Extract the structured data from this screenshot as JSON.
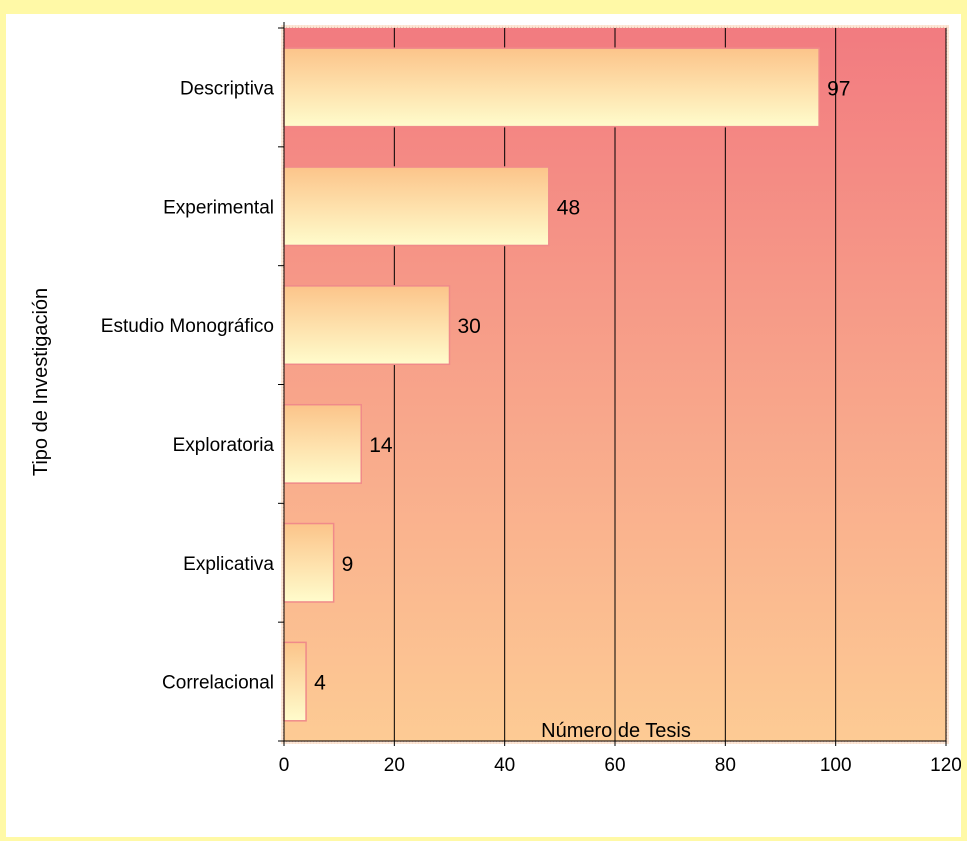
{
  "chart_data": {
    "type": "bar",
    "orientation": "horizontal",
    "title": "",
    "xlabel": "Número de Tesis",
    "ylabel": "Tipo de Investigación",
    "categories": [
      "Descriptiva",
      "Experimental",
      "Estudio Monográfico",
      "Exploratoria",
      "Explicativa",
      "Correlacional"
    ],
    "values": [
      97,
      48,
      30,
      14,
      9,
      4
    ],
    "xlim": [
      0,
      120
    ],
    "xticks": [
      "0",
      "20",
      "40",
      "60",
      "80",
      "100",
      "120"
    ],
    "grid": "vertical",
    "legend": "none",
    "colors": {
      "page_border": "#fff9a6",
      "plot_top": "#f27b80",
      "plot_bottom": "#fdcb94",
      "bar_top": "#fcc48a",
      "bar_bottom": "#fffccc",
      "bar_border": "#f08a8a",
      "gridline": "#000000"
    }
  }
}
